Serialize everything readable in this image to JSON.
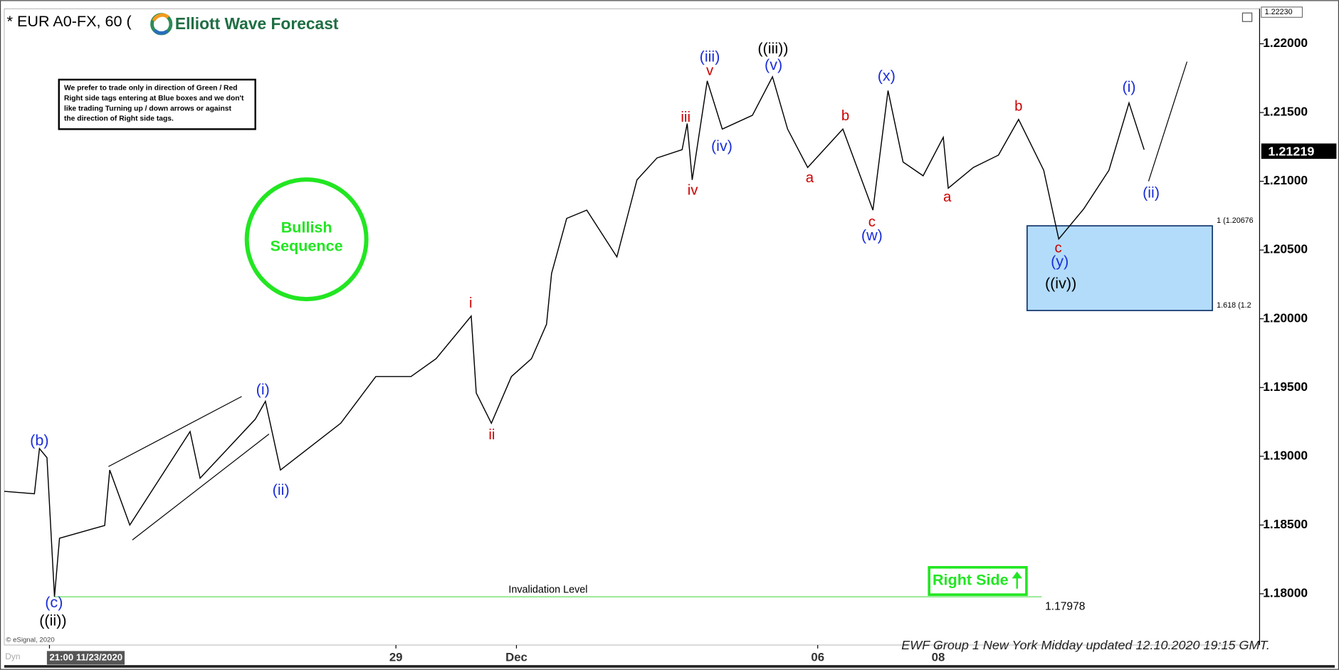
{
  "chart_data": {
    "type": "line",
    "title": "* EUR A0-FX, 60 (",
    "logo_text": "Elliott Wave Forecast",
    "note": [
      "We prefer to trade only in direction of Green / Red",
      "Right side tags entering at Blue boxes and we don't",
      "like trading Turning up / down arrows or against",
      "the direction of Right side tags."
    ],
    "badge": [
      "Bullish",
      "Sequence"
    ],
    "right_side_label": "Right Side",
    "footer": "EWF Group 1 New York Midday updated 12.10.2020 19:15 GMT.",
    "copyright": "© eSignal, 2020",
    "corner_label": "Dyn",
    "color": "#000000",
    "x": [
      0,
      6,
      7,
      8.5,
      10,
      11,
      20,
      21,
      25,
      37,
      39,
      50,
      52,
      55,
      67,
      74,
      81,
      86,
      93,
      94,
      97,
      101,
      105,
      108,
      109,
      112,
      116,
      122,
      126,
      130,
      135,
      136,
      137,
      140,
      143,
      149,
      153,
      156,
      160,
      167,
      173,
      176,
      179,
      183,
      187,
      188,
      193,
      198,
      202,
      207,
      210,
      215,
      220,
      224,
      227
    ],
    "values": [
      1.18745,
      1.18727,
      1.19056,
      1.1899,
      1.17978,
      1.18404,
      1.18497,
      1.189,
      1.185,
      1.1918,
      1.1884,
      1.1927,
      1.194,
      1.189,
      1.1924,
      1.1958,
      1.1958,
      1.1971,
      1.2002,
      1.1946,
      1.1924,
      1.1958,
      1.1971,
      1.1996,
      1.2033,
      1.2073,
      1.2079,
      1.2045,
      1.2101,
      1.2117,
      1.2123,
      1.2142,
      1.2101,
      1.2173,
      1.2138,
      1.2148,
      1.2176,
      1.2138,
      1.211,
      1.2138,
      1.2079,
      1.2166,
      1.2114,
      1.2104,
      1.2132,
      1.2095,
      1.211,
      1.2119,
      1.2145,
      1.2108,
      1.2058,
      1.208,
      1.2108,
      1.2157,
      1.2123
    ],
    "xlim": [
      0,
      250
    ],
    "xticks": [
      {
        "value": 9,
        "label": "21:00 11/23/2020"
      },
      {
        "value": 78,
        "label": "29"
      },
      {
        "value": 102,
        "label": "Dec"
      },
      {
        "value": 162,
        "label": "06"
      },
      {
        "value": 186,
        "label": "08"
      }
    ],
    "ylim": [
      1.17627,
      1.22255
    ],
    "yticks": [
      {
        "value": 1.18,
        "label": "1.18000"
      },
      {
        "value": 1.185,
        "label": "1.18500"
      },
      {
        "value": 1.19,
        "label": "1.19000"
      },
      {
        "value": 1.195,
        "label": "1.19500"
      },
      {
        "value": 1.2,
        "label": "1.20000"
      },
      {
        "value": 1.205,
        "label": "1.20500"
      },
      {
        "value": 1.21,
        "label": "1.21000"
      },
      {
        "value": 1.215,
        "label": "1.21500"
      },
      {
        "value": 1.22,
        "label": "1.22000"
      }
    ],
    "last_price": {
      "value": 1.21219,
      "label": "1.21219"
    },
    "high_marker": {
      "value": 1.2223,
      "label": "1.22230"
    },
    "invalidation": {
      "label": "Invalidation Level",
      "value": 1.17978,
      "value_label": "1.17978",
      "x": [
        10,
        206.6
      ]
    },
    "target_box": {
      "x": [
        203.7,
        240.6
      ],
      "top": {
        "value": 1.20676,
        "label": "1 (1.20676"
      },
      "bottom": {
        "value": 1.2006,
        "label": "1.618 (1.2"
      }
    },
    "annotations": [
      {
        "text": "(b)",
        "x": 7.0,
        "y": 1.1911,
        "color": "#1c2fd8"
      },
      {
        "text": "(c)",
        "x": 9.9,
        "y": 1.1793,
        "color": "#1c2fd8"
      },
      {
        "text": "((ii))",
        "x": 9.7,
        "y": 1.178,
        "color": "#000000"
      },
      {
        "text": "(i)",
        "x": 51.5,
        "y": 1.1948,
        "color": "#1c2fd8"
      },
      {
        "text": "(ii)",
        "x": 55.1,
        "y": 1.1875,
        "color": "#1c2fd8"
      },
      {
        "text": "i",
        "x": 92.9,
        "y": 1.2011,
        "color": "#cc0000"
      },
      {
        "text": "ii",
        "x": 97.1,
        "y": 1.1915,
        "color": "#cc0000"
      },
      {
        "text": "iii",
        "x": 135.7,
        "y": 1.2146,
        "color": "#cc0000"
      },
      {
        "text": "iv",
        "x": 137.1,
        "y": 1.2093,
        "color": "#cc0000"
      },
      {
        "text": "v",
        "x": 140.5,
        "y": 1.218,
        "color": "#cc0000"
      },
      {
        "text": "(iii)",
        "x": 140.5,
        "y": 1.219,
        "color": "#1c2fd8"
      },
      {
        "text": "((iii))",
        "x": 153.1,
        "y": 1.2196,
        "color": "#000000"
      },
      {
        "text": "(v)",
        "x": 153.2,
        "y": 1.2184,
        "color": "#1c2fd8"
      },
      {
        "text": "(iv)",
        "x": 142.9,
        "y": 1.2125,
        "color": "#1c2fd8"
      },
      {
        "text": "a",
        "x": 160.4,
        "y": 1.2102,
        "color": "#cc0000"
      },
      {
        "text": "b",
        "x": 167.5,
        "y": 1.2147,
        "color": "#cc0000"
      },
      {
        "text": "c",
        "x": 172.8,
        "y": 1.207,
        "color": "#cc0000"
      },
      {
        "text": "(w)",
        "x": 172.8,
        "y": 1.206,
        "color": "#1c2fd8"
      },
      {
        "text": "(x)",
        "x": 175.7,
        "y": 1.2176,
        "color": "#1c2fd8"
      },
      {
        "text": "a",
        "x": 187.8,
        "y": 1.2088,
        "color": "#cc0000"
      },
      {
        "text": "b",
        "x": 202,
        "y": 1.2154,
        "color": "#cc0000"
      },
      {
        "text": "c",
        "x": 209.9,
        "y": 1.2051,
        "color": "#cc0000"
      },
      {
        "text": "(y)",
        "x": 210.2,
        "y": 1.2041,
        "color": "#1c2fd8"
      },
      {
        "text": "((iv))",
        "x": 210.4,
        "y": 1.2025,
        "color": "#000000"
      },
      {
        "text": "(i)",
        "x": 224,
        "y": 1.2168,
        "color": "#1c2fd8"
      },
      {
        "text": "(ii)",
        "x": 228.4,
        "y": 1.2091,
        "color": "#1c2fd8"
      }
    ]
  }
}
